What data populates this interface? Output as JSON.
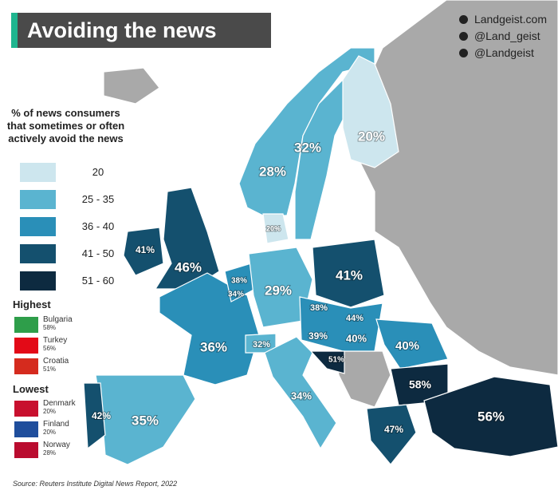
{
  "header": {
    "title": "Avoiding the news",
    "social": [
      "Landgeist.com",
      "@Land_geist",
      "@Landgeist"
    ]
  },
  "legend": {
    "title": "% of news consumers that sometimes or often actively avoid the news",
    "bins": [
      {
        "label": "20",
        "color": "#cde6ee"
      },
      {
        "label": "25 - 35",
        "color": "#5ab4d0"
      },
      {
        "label": "36 - 40",
        "color": "#2a8fb8"
      },
      {
        "label": "41 - 50",
        "color": "#14506e"
      },
      {
        "label": "51 - 60",
        "color": "#0d2a40"
      }
    ]
  },
  "highest": {
    "title": "Highest",
    "items": [
      {
        "country": "Bulgaria",
        "value": "58%"
      },
      {
        "country": "Turkey",
        "value": "56%"
      },
      {
        "country": "Croatia",
        "value": "51%"
      }
    ]
  },
  "lowest": {
    "title": "Lowest",
    "items": [
      {
        "country": "Denmark",
        "value": "20%"
      },
      {
        "country": "Finland",
        "value": "20%"
      },
      {
        "country": "Norway",
        "value": "28%"
      }
    ]
  },
  "map": {
    "labels": [
      "20%",
      "32%",
      "28%",
      "20%",
      "41%",
      "46%",
      "38%",
      "34%",
      "29%",
      "41%",
      "38%",
      "44%",
      "39%",
      "40%",
      "40%",
      "36%",
      "32%",
      "51%",
      "34%",
      "58%",
      "56%",
      "47%",
      "42%",
      "35%"
    ]
  },
  "source": "Source: Reuters Institute Digital News Report, 2022"
}
